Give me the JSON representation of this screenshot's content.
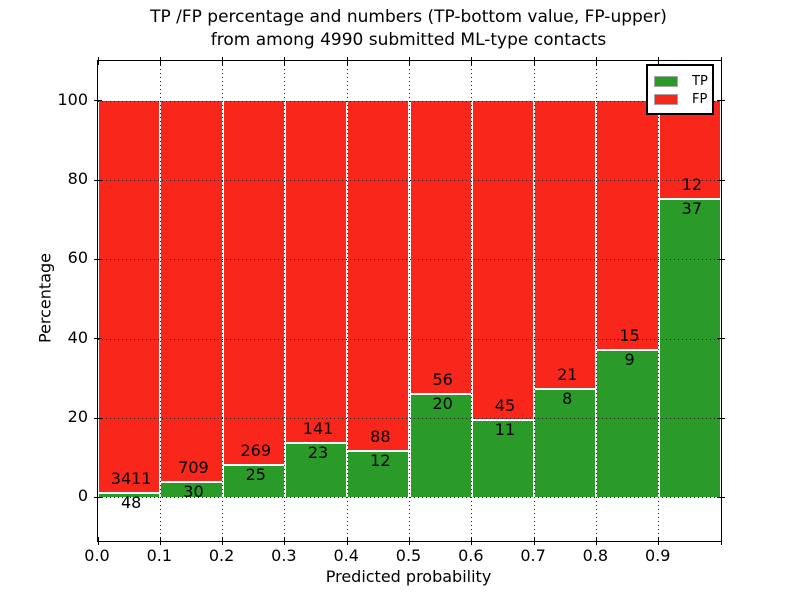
{
  "title": {
    "line1": "TP /FP percentage and numbers (TP-bottom value, FP-upper)",
    "line2": "from among 4990 submitted ML-type contacts"
  },
  "axes": {
    "xlabel": "Predicted probability",
    "ylabel": "Percentage",
    "x_tick_labels": [
      "0.0",
      "0.1",
      "0.2",
      "0.3",
      "0.4",
      "0.5",
      "0.6",
      "0.7",
      "0.8",
      "0.9"
    ],
    "y_tick_labels": [
      "0",
      "20",
      "40",
      "60",
      "80",
      "100"
    ],
    "y_tick_values": [
      0,
      20,
      40,
      60,
      80,
      100
    ]
  },
  "legend": {
    "items": [
      {
        "label": "TP",
        "color": "#2a9a28"
      },
      {
        "label": "FP",
        "color": "#f9261b"
      }
    ]
  },
  "chart_data": {
    "type": "bar",
    "stacking": "percent",
    "title": "TP /FP percentage and numbers (TP-bottom value, FP-upper) from among 4990 submitted ML-type contacts",
    "xlabel": "Predicted probability",
    "ylabel": "Percentage",
    "total_contacts": 4990,
    "bin_edges": [
      0.0,
      0.1,
      0.2,
      0.3,
      0.4,
      0.5,
      0.6,
      0.7,
      0.8,
      0.9,
      1.0
    ],
    "categories": [
      "0.0-0.1",
      "0.1-0.2",
      "0.2-0.3",
      "0.3-0.4",
      "0.4-0.5",
      "0.5-0.6",
      "0.6-0.7",
      "0.7-0.8",
      "0.8-0.9",
      "0.9-1.0"
    ],
    "series": [
      {
        "name": "TP",
        "color": "#2a9a28",
        "counts": [
          48,
          30,
          25,
          23,
          12,
          20,
          11,
          8,
          9,
          37
        ],
        "percent": [
          1.39,
          4.06,
          8.5,
          14.02,
          12.0,
          26.32,
          19.64,
          27.59,
          37.5,
          75.51
        ]
      },
      {
        "name": "FP",
        "color": "#f9261b",
        "counts": [
          3411,
          709,
          269,
          141,
          88,
          56,
          45,
          21,
          15,
          12
        ],
        "percent": [
          98.61,
          95.94,
          91.5,
          85.98,
          88.0,
          73.68,
          80.36,
          72.41,
          62.5,
          24.49
        ]
      }
    ],
    "annotation_rule": "FP count printed above TP/FP boundary, TP count printed below boundary",
    "ylim": [
      -11,
      110
    ],
    "xlim": [
      0.0,
      1.0
    ],
    "grid": true,
    "grid_style": "dotted",
    "legend_position": "upper right"
  }
}
